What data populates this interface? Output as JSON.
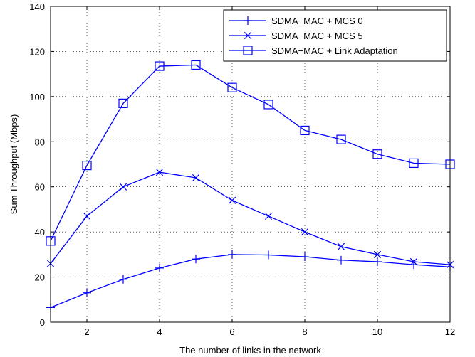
{
  "chart_data": {
    "type": "line",
    "title": "",
    "xlabel": "The number of links in the network",
    "ylabel": "Sum Throughput (Mbps)",
    "xlim": [
      1,
      12
    ],
    "ylim": [
      0,
      140
    ],
    "x_ticks": [
      2,
      4,
      6,
      8,
      10,
      12
    ],
    "y_ticks": [
      0,
      20,
      40,
      60,
      80,
      100,
      120,
      140
    ],
    "grid": true,
    "legend_position": "top-right",
    "line_color": "#0000ff",
    "x": [
      1,
      2,
      3,
      4,
      5,
      6,
      7,
      8,
      9,
      10,
      11,
      12
    ],
    "series": [
      {
        "name": "SDMA−MAC + MCS 0",
        "marker": "plus",
        "values": [
          6.5,
          13,
          19,
          24,
          28,
          30,
          29.8,
          29,
          27.5,
          26.8,
          25.5,
          24.5
        ]
      },
      {
        "name": "SDMA−MAC + MCS 5",
        "marker": "x",
        "values": [
          26,
          47,
          60,
          66.5,
          64,
          54,
          47,
          40,
          33.5,
          30,
          26.8,
          25.5
        ]
      },
      {
        "name": "SDMA−MAC + Link Adaptation",
        "marker": "square",
        "values": [
          36,
          69.5,
          97,
          113.5,
          114,
          104,
          96.5,
          85,
          81,
          74.5,
          70.5,
          70
        ]
      }
    ]
  }
}
